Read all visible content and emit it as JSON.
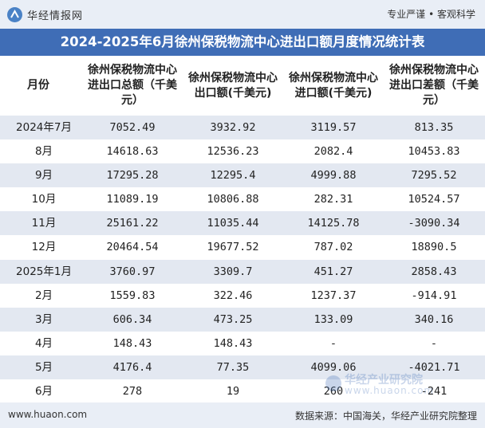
{
  "header": {
    "brand": "华经情报网",
    "slogan": "专业严谨 • 客观科学"
  },
  "chart_data": {
    "type": "table",
    "title": "2024-2025年6月徐州保税物流中心进出口额月度情况统计表",
    "columns": [
      "月份",
      "徐州保税物流中心进出口总额（千美元）",
      "徐州保税物流中心出口额(千美元)",
      "徐州保税物流中心进口额(千美元)",
      "徐州保税物流中心进出口差额（千美元）"
    ],
    "rows": [
      [
        "2024年7月",
        "7052.49",
        "3932.92",
        "3119.57",
        "813.35"
      ],
      [
        "8月",
        "14618.63",
        "12536.23",
        "2082.4",
        "10453.83"
      ],
      [
        "9月",
        "17295.28",
        "12295.4",
        "4999.88",
        "7295.52"
      ],
      [
        "10月",
        "11089.19",
        "10806.88",
        "282.31",
        "10524.57"
      ],
      [
        "11月",
        "25161.22",
        "11035.44",
        "14125.78",
        "-3090.34"
      ],
      [
        "12月",
        "20464.54",
        "19677.52",
        "787.02",
        "18890.5"
      ],
      [
        "2025年1月",
        "3760.97",
        "3309.7",
        "451.27",
        "2858.43"
      ],
      [
        "2月",
        "1559.83",
        "322.46",
        "1237.37",
        "-914.91"
      ],
      [
        "3月",
        "606.34",
        "473.25",
        "133.09",
        "340.16"
      ],
      [
        "4月",
        "148.43",
        "148.43",
        "-",
        "-"
      ],
      [
        "5月",
        "4176.4",
        "77.35",
        "4099.06",
        "-4021.71"
      ],
      [
        "6月",
        "278",
        "19",
        "260",
        "-241"
      ]
    ]
  },
  "footer": {
    "site": "www.huaon.com",
    "source": "数据来源：中国海关，华经产业研究院整理"
  },
  "watermark": {
    "name": "华经产业研究院",
    "url": "www.huaon.com"
  },
  "colors": {
    "title_bg": "#3f6db6",
    "stripe": "#e3e8f1",
    "band": "#e9eef6"
  }
}
